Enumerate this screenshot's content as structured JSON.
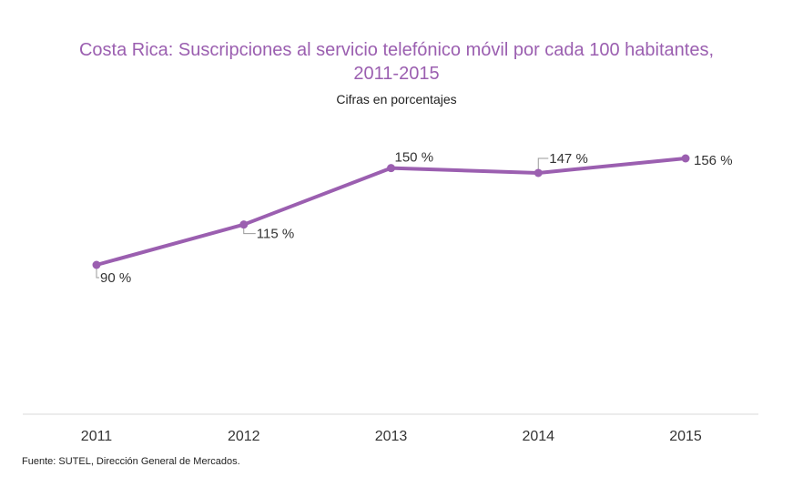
{
  "chart_data": {
    "type": "line",
    "title": "Costa Rica: Suscripciones al servicio telefónico móvil por cada 100 habitantes, 2011-2015",
    "title_line1": "Costa Rica: Suscripciones al servicio telefónico móvil por cada 100 habitantes,",
    "title_line2": "2011-2015",
    "subtitle": "Cifras en porcentajes",
    "categories": [
      "2011",
      "2012",
      "2013",
      "2014",
      "2015"
    ],
    "series": [
      {
        "values": [
          90,
          115,
          150,
          147,
          156
        ],
        "labels": [
          "90 %",
          "115 %",
          "150 %",
          "147 %",
          "156 %"
        ],
        "color": "#9b5fb0"
      }
    ],
    "xlabel": "",
    "ylabel": "",
    "grid": false,
    "legend": "none"
  },
  "source": "Fuente: SUTEL, Dirección General de Mercados."
}
